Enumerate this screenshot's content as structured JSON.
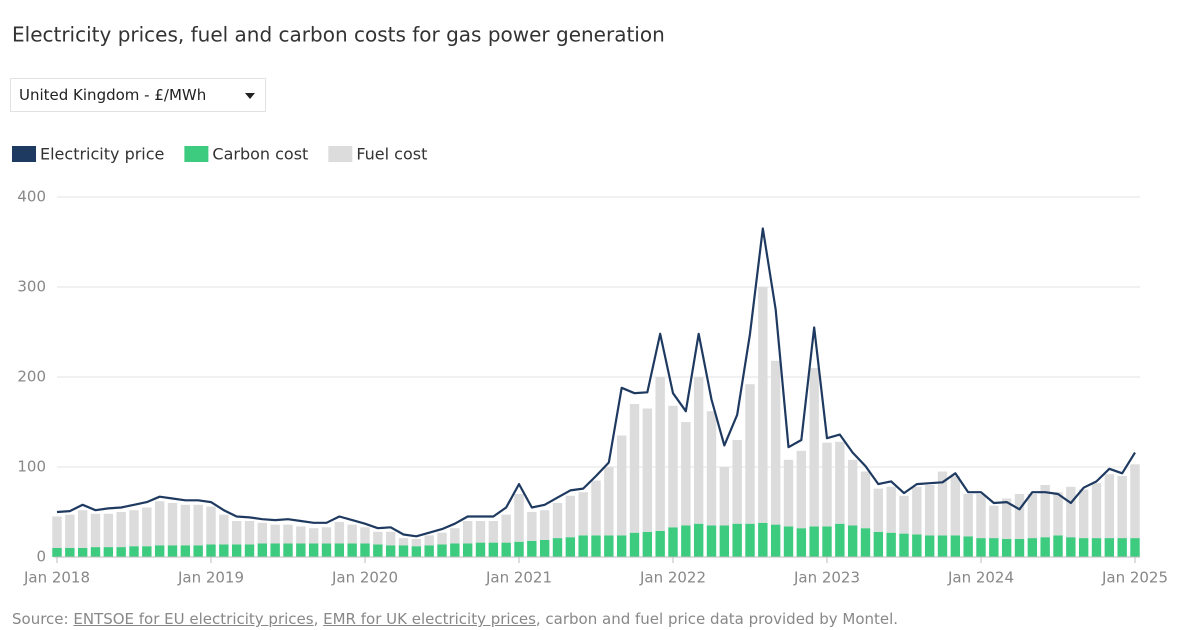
{
  "chart_data": {
    "type": "bar",
    "subtitle": "Electricity prices, fuel and carbon costs for gas power generation",
    "unit_selector": "United Kingdom - £/MWh",
    "x": [
      "2018-01",
      "2018-02",
      "2018-03",
      "2018-04",
      "2018-05",
      "2018-06",
      "2018-07",
      "2018-08",
      "2018-09",
      "2018-10",
      "2018-11",
      "2018-12",
      "2019-01",
      "2019-02",
      "2019-03",
      "2019-04",
      "2019-05",
      "2019-06",
      "2019-07",
      "2019-08",
      "2019-09",
      "2019-10",
      "2019-11",
      "2019-12",
      "2020-01",
      "2020-02",
      "2020-03",
      "2020-04",
      "2020-05",
      "2020-06",
      "2020-07",
      "2020-08",
      "2020-09",
      "2020-10",
      "2020-11",
      "2020-12",
      "2021-01",
      "2021-02",
      "2021-03",
      "2021-04",
      "2021-05",
      "2021-06",
      "2021-07",
      "2021-08",
      "2021-09",
      "2021-10",
      "2021-11",
      "2021-12",
      "2022-01",
      "2022-02",
      "2022-03",
      "2022-04",
      "2022-05",
      "2022-06",
      "2022-07",
      "2022-08",
      "2022-09",
      "2022-10",
      "2022-11",
      "2022-12",
      "2023-01",
      "2023-02",
      "2023-03",
      "2023-04",
      "2023-05",
      "2023-06",
      "2023-07",
      "2023-08",
      "2023-09",
      "2023-10",
      "2023-11",
      "2023-12",
      "2024-01",
      "2024-02",
      "2024-03",
      "2024-04",
      "2024-05",
      "2024-06",
      "2024-07",
      "2024-08",
      "2024-09",
      "2024-10",
      "2024-11",
      "2024-12",
      "2025-01"
    ],
    "xticks": [
      {
        "value": "2018-01",
        "label": "Jan 2018"
      },
      {
        "value": "2019-01",
        "label": "Jan 2019"
      },
      {
        "value": "2020-01",
        "label": "Jan 2020"
      },
      {
        "value": "2021-01",
        "label": "Jan 2021"
      },
      {
        "value": "2022-01",
        "label": "Jan 2022"
      },
      {
        "value": "2023-01",
        "label": "Jan 2023"
      },
      {
        "value": "2024-01",
        "label": "Jan 2024"
      },
      {
        "value": "2025-01",
        "label": "Jan 2025"
      }
    ],
    "ylim": [
      0,
      400
    ],
    "yticks": [
      0,
      100,
      200,
      300,
      400
    ],
    "grid": true,
    "series": [
      {
        "name": "Electricity price",
        "type": "line",
        "color": "#1f3a60",
        "values": [
          50,
          51,
          58,
          52,
          54,
          55,
          58,
          61,
          67,
          65,
          63,
          63,
          61,
          52,
          45,
          44,
          42,
          41,
          42,
          40,
          38,
          38,
          45,
          41,
          37,
          32,
          33,
          25,
          23,
          27,
          31,
          37,
          45,
          45,
          45,
          55,
          81,
          55,
          58,
          66,
          74,
          76,
          90,
          105,
          188,
          182,
          183,
          248,
          182,
          162,
          248,
          175,
          124,
          158,
          248,
          365,
          275,
          122,
          130,
          255,
          132,
          136,
          116,
          101,
          81,
          84,
          71,
          81,
          82,
          83,
          93,
          72,
          72,
          60,
          61,
          53,
          72,
          72,
          70,
          60,
          77,
          84,
          98,
          93,
          116
        ]
      },
      {
        "name": "Carbon cost",
        "type": "bar",
        "color": "#3ccb7f",
        "values": [
          10,
          10,
          10,
          11,
          11,
          11,
          12,
          12,
          13,
          13,
          13,
          13,
          14,
          14,
          14,
          14,
          15,
          15,
          15,
          15,
          15,
          15,
          15,
          15,
          15,
          14,
          13,
          13,
          12,
          13,
          14,
          15,
          15,
          16,
          16,
          16,
          17,
          18,
          19,
          21,
          22,
          24,
          24,
          24,
          24,
          27,
          28,
          29,
          33,
          35,
          37,
          35,
          35,
          37,
          37,
          38,
          36,
          34,
          32,
          34,
          34,
          37,
          35,
          32,
          28,
          27,
          26,
          25,
          24,
          24,
          24,
          23,
          21,
          21,
          20,
          20,
          21,
          22,
          24,
          22,
          21,
          21,
          21,
          21,
          21
        ]
      },
      {
        "name": "Fuel cost",
        "type": "bar",
        "color": "#dcdcdc",
        "values": [
          35,
          37,
          42,
          37,
          37,
          39,
          40,
          43,
          49,
          47,
          45,
          45,
          42,
          33,
          26,
          26,
          23,
          21,
          21,
          19,
          17,
          18,
          24,
          21,
          18,
          14,
          15,
          8,
          8,
          11,
          13,
          17,
          25,
          24,
          24,
          31,
          53,
          32,
          33,
          39,
          46,
          48,
          61,
          76,
          111,
          143,
          137,
          171,
          135,
          115,
          163,
          127,
          65,
          93,
          155,
          262,
          182,
          74,
          86,
          176,
          93,
          91,
          73,
          63,
          48,
          51,
          42,
          53,
          56,
          71,
          66,
          47,
          49,
          36,
          45,
          50,
          49,
          58,
          48,
          56,
          54,
          61,
          71,
          69,
          82
        ]
      }
    ],
    "source": [
      {
        "text": "Source: "
      },
      {
        "text": "ENTSOE for EU electricity prices",
        "link": true
      },
      {
        "text": ", "
      },
      {
        "text": "EMR for UK electricity prices",
        "link": true
      },
      {
        "text": ", carbon and fuel price data provided by Montel."
      }
    ]
  }
}
